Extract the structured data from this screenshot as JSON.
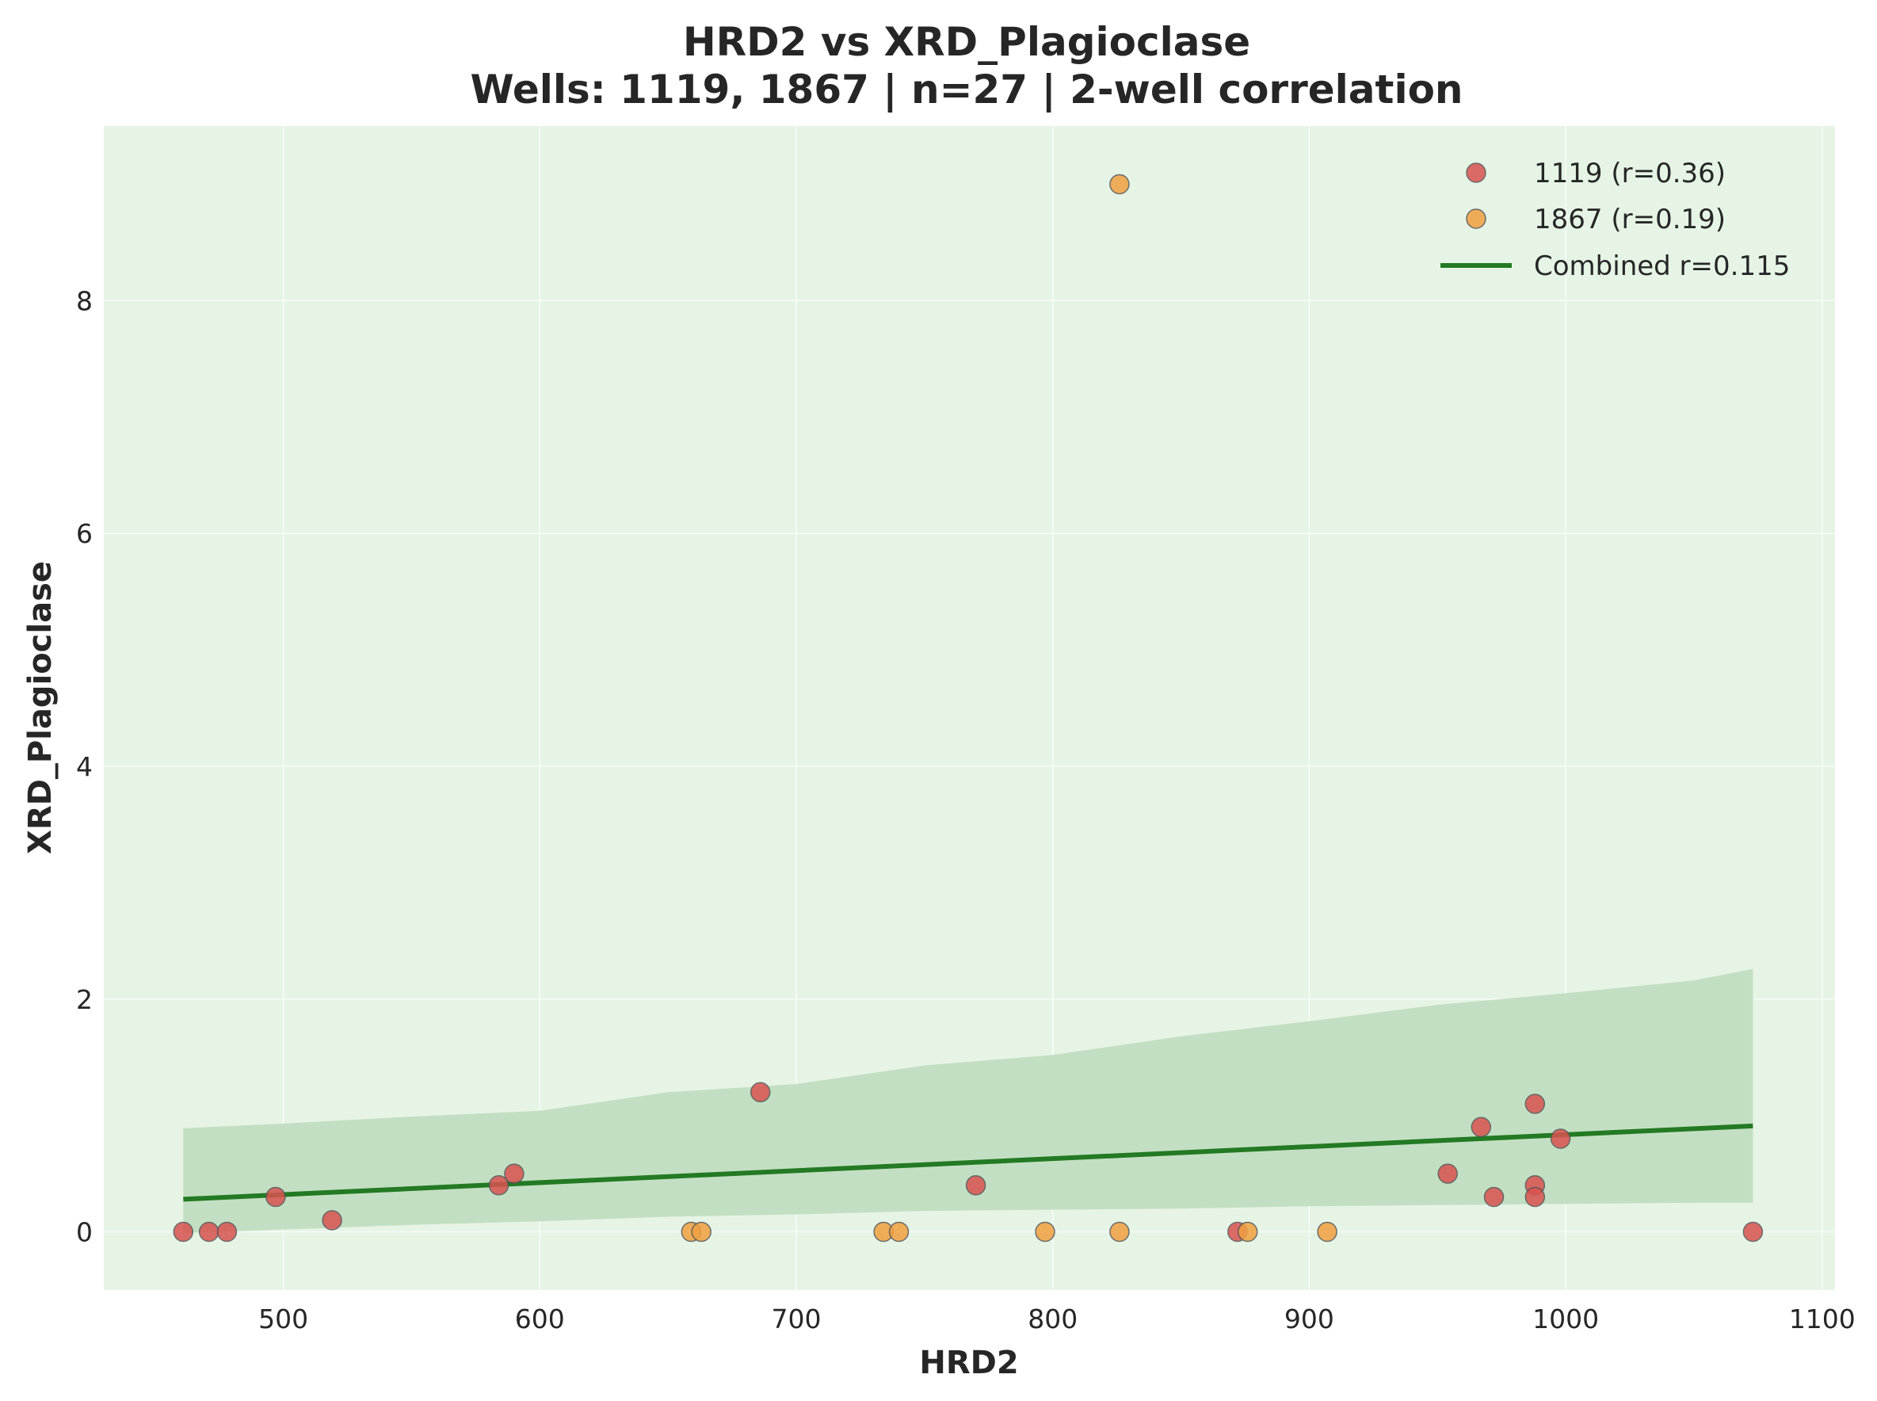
{
  "chart_data": {
    "type": "scatter",
    "title": "HRD2 vs XRD_Plagioclase",
    "subtitle": "Wells: 1119, 1867 | n=27 | 2-well correlation",
    "xlabel": "HRD2",
    "ylabel": "XRD_Plagioclase",
    "xlim": [
      430,
      1105
    ],
    "ylim": [
      -0.5,
      9.5
    ],
    "xticks": [
      500,
      600,
      700,
      800,
      900,
      1000,
      1100
    ],
    "yticks": [
      0,
      2,
      4,
      6,
      8
    ],
    "grid": true,
    "legend_position": "top-right",
    "background_color": "#e6f4e6",
    "series": [
      {
        "name": "1119 (r=0.36)",
        "color": "#d9534f",
        "points": [
          [
            461,
            0.0
          ],
          [
            471,
            0.0
          ],
          [
            478,
            0.0
          ],
          [
            497,
            0.3
          ],
          [
            519,
            0.1
          ],
          [
            584,
            0.4
          ],
          [
            590,
            0.5
          ],
          [
            686,
            1.2
          ],
          [
            770,
            0.4
          ],
          [
            872,
            0.0
          ],
          [
            954,
            0.5
          ],
          [
            967,
            0.9
          ],
          [
            972,
            0.3
          ],
          [
            988,
            1.1
          ],
          [
            988,
            0.4
          ],
          [
            988,
            0.3
          ],
          [
            998,
            0.8
          ],
          [
            1073,
            0.0
          ]
        ]
      },
      {
        "name": "1867 (r=0.19)",
        "color": "#f0a040",
        "points": [
          [
            659,
            0.0
          ],
          [
            663,
            0.0
          ],
          [
            734,
            0.0
          ],
          [
            740,
            0.0
          ],
          [
            797,
            0.0
          ],
          [
            826,
            0.0
          ],
          [
            826,
            9.0
          ],
          [
            876,
            0.0
          ],
          [
            907,
            0.0
          ]
        ]
      }
    ],
    "fit": {
      "name": "Combined r=0.115",
      "color": "#237a23",
      "x": [
        461,
        1073
      ],
      "y": [
        0.28,
        0.91
      ]
    },
    "confidence_band": {
      "color": "#c3dfc3",
      "x": [
        461,
        500,
        550,
        600,
        650,
        700,
        750,
        800,
        850,
        900,
        950,
        1000,
        1050,
        1073
      ],
      "upper": [
        0.89,
        0.93,
        0.99,
        1.04,
        1.2,
        1.27,
        1.43,
        1.52,
        1.68,
        1.81,
        1.95,
        2.05,
        2.16,
        2.26
      ],
      "lower": [
        -0.01,
        0.02,
        0.06,
        0.09,
        0.13,
        0.15,
        0.18,
        0.19,
        0.2,
        0.22,
        0.23,
        0.24,
        0.25,
        0.25
      ]
    }
  }
}
